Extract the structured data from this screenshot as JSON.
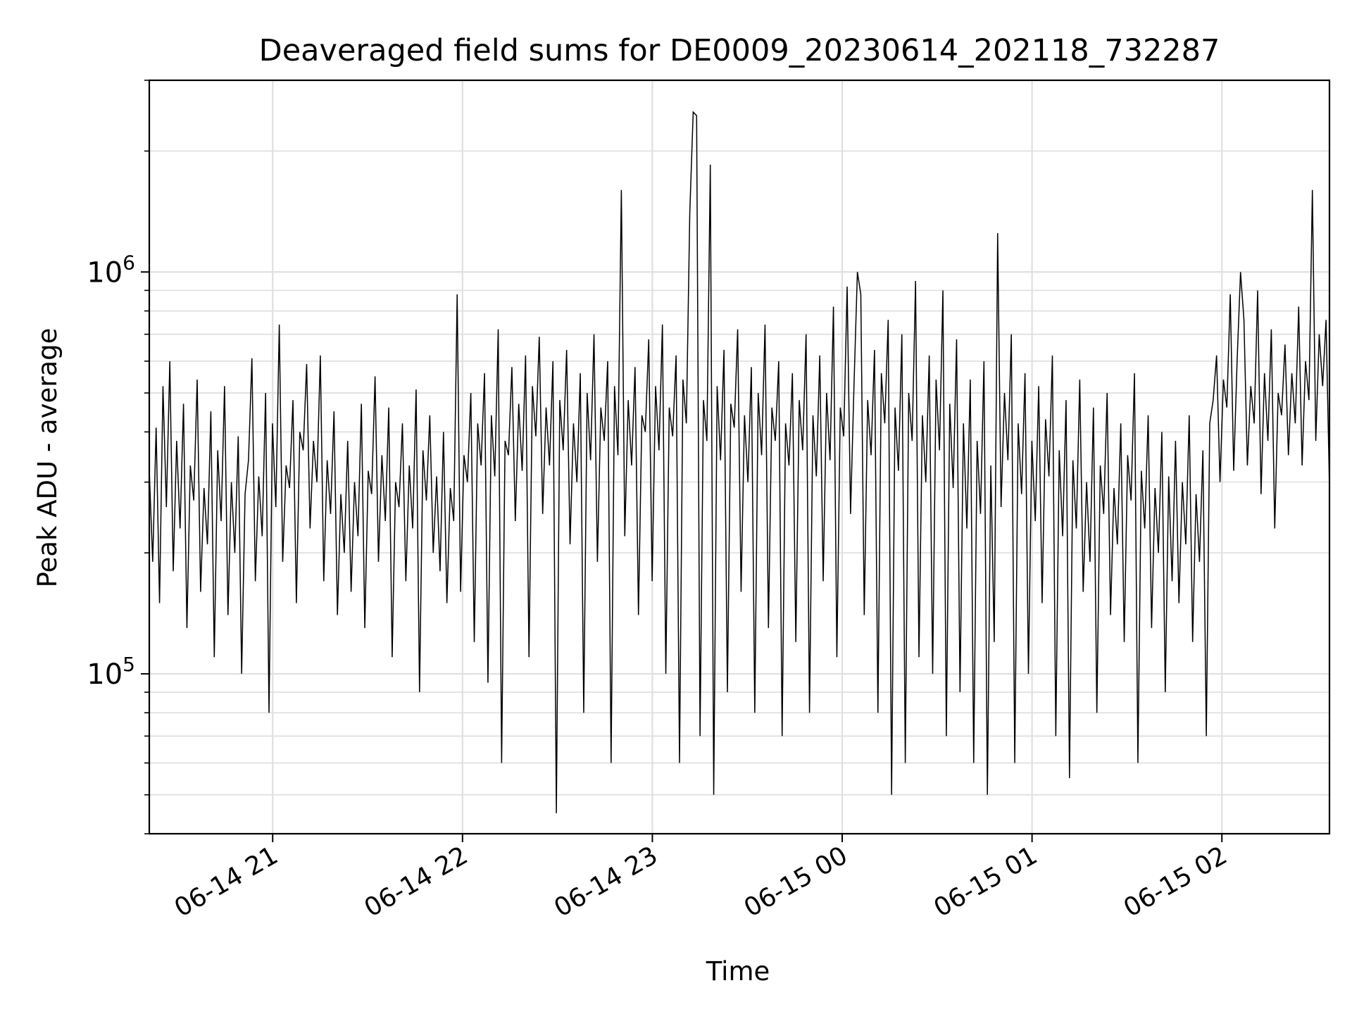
{
  "chart_data": {
    "type": "line",
    "title": "Deaveraged field sums for DE0009_20230614_202118_732287",
    "xlabel": "Time",
    "ylabel": "Peak ADU - average",
    "x_range": [
      "2023-06-14 20:21",
      "2023-06-15 02:34"
    ],
    "ylim": [
      40000,
      3000000
    ],
    "y_scale": "log",
    "grid": true,
    "legend": "none",
    "line_color": "#000000",
    "x_ticks": [
      {
        "value": "2023-06-14 21:00",
        "label": "06-14 21"
      },
      {
        "value": "2023-06-14 22:00",
        "label": "06-14 22"
      },
      {
        "value": "2023-06-14 23:00",
        "label": "06-14 23"
      },
      {
        "value": "2023-06-15 00:00",
        "label": "06-15 00"
      },
      {
        "value": "2023-06-15 01:00",
        "label": "06-15 01"
      },
      {
        "value": "2023-06-15 02:00",
        "label": "06-15 02"
      }
    ],
    "y_ticks": [
      {
        "value": 100000,
        "base": "10",
        "exp": "5"
      },
      {
        "value": 1000000,
        "base": "10",
        "exp": "6"
      }
    ],
    "series": [
      {
        "x_start": "2023-06-14 20:21",
        "x_end": "2023-06-15 02:34",
        "values": [
          320000,
          190000,
          410000,
          150000,
          520000,
          260000,
          600000,
          180000,
          380000,
          230000,
          470000,
          130000,
          330000,
          270000,
          540000,
          160000,
          290000,
          210000,
          450000,
          110000,
          360000,
          240000,
          520000,
          140000,
          300000,
          200000,
          390000,
          100000,
          280000,
          340000,
          610000,
          170000,
          310000,
          220000,
          500000,
          80000,
          420000,
          260000,
          740000,
          190000,
          330000,
          290000,
          480000,
          150000,
          400000,
          360000,
          590000,
          230000,
          380000,
          300000,
          620000,
          170000,
          340000,
          250000,
          450000,
          140000,
          280000,
          200000,
          380000,
          160000,
          300000,
          220000,
          470000,
          130000,
          320000,
          280000,
          550000,
          190000,
          350000,
          240000,
          460000,
          110000,
          300000,
          260000,
          420000,
          170000,
          330000,
          230000,
          510000,
          90000,
          360000,
          270000,
          440000,
          200000,
          310000,
          180000,
          400000,
          150000,
          290000,
          240000,
          880000,
          160000,
          350000,
          300000,
          500000,
          120000,
          420000,
          330000,
          560000,
          95000,
          440000,
          310000,
          720000,
          60000,
          380000,
          350000,
          580000,
          240000,
          470000,
          320000,
          620000,
          110000,
          520000,
          390000,
          690000,
          250000,
          460000,
          330000,
          600000,
          45000,
          480000,
          360000,
          640000,
          210000,
          420000,
          300000,
          560000,
          80000,
          500000,
          340000,
          700000,
          190000,
          460000,
          380000,
          600000,
          60000,
          520000,
          350000,
          1600000,
          220000,
          480000,
          330000,
          580000,
          140000,
          440000,
          400000,
          680000,
          170000,
          520000,
          360000,
          740000,
          100000,
          460000,
          390000,
          620000,
          60000,
          540000,
          420000,
          1400000,
          2500000,
          2450000,
          70000,
          480000,
          380000,
          1850000,
          50000,
          520000,
          340000,
          640000,
          90000,
          470000,
          410000,
          720000,
          160000,
          440000,
          300000,
          580000,
          80000,
          500000,
          350000,
          740000,
          130000,
          460000,
          380000,
          600000,
          70000,
          420000,
          330000,
          560000,
          120000,
          480000,
          360000,
          700000,
          80000,
          440000,
          310000,
          620000,
          170000,
          500000,
          340000,
          820000,
          110000,
          460000,
          390000,
          920000,
          250000,
          520000,
          1000000,
          880000,
          140000,
          480000,
          350000,
          640000,
          80000,
          560000,
          420000,
          760000,
          50000,
          460000,
          320000,
          700000,
          60000,
          500000,
          380000,
          950000,
          110000,
          440000,
          300000,
          620000,
          100000,
          540000,
          360000,
          900000,
          70000,
          470000,
          290000,
          680000,
          90000,
          420000,
          230000,
          540000,
          60000,
          380000,
          250000,
          600000,
          50000,
          330000,
          120000,
          1250000,
          260000,
          500000,
          340000,
          700000,
          60000,
          420000,
          280000,
          560000,
          100000,
          380000,
          240000,
          520000,
          150000,
          430000,
          310000,
          620000,
          70000,
          360000,
          220000,
          480000,
          55000,
          340000,
          230000,
          540000,
          160000,
          300000,
          190000,
          460000,
          80000,
          330000,
          250000,
          500000,
          140000,
          290000,
          210000,
          420000,
          120000,
          350000,
          270000,
          560000,
          60000,
          320000,
          230000,
          440000,
          130000,
          290000,
          200000,
          400000,
          90000,
          310000,
          170000,
          380000,
          150000,
          300000,
          210000,
          440000,
          120000,
          280000,
          190000,
          360000,
          70000,
          420000,
          480000,
          620000,
          300000,
          540000,
          460000,
          880000,
          320000,
          600000,
          1000000,
          760000,
          330000,
          520000,
          420000,
          900000,
          280000,
          560000,
          380000,
          720000,
          230000,
          500000,
          440000,
          660000,
          350000,
          560000,
          420000,
          820000,
          330000,
          600000,
          480000,
          1600000,
          380000,
          700000,
          520000,
          760000,
          290000
        ]
      }
    ]
  }
}
